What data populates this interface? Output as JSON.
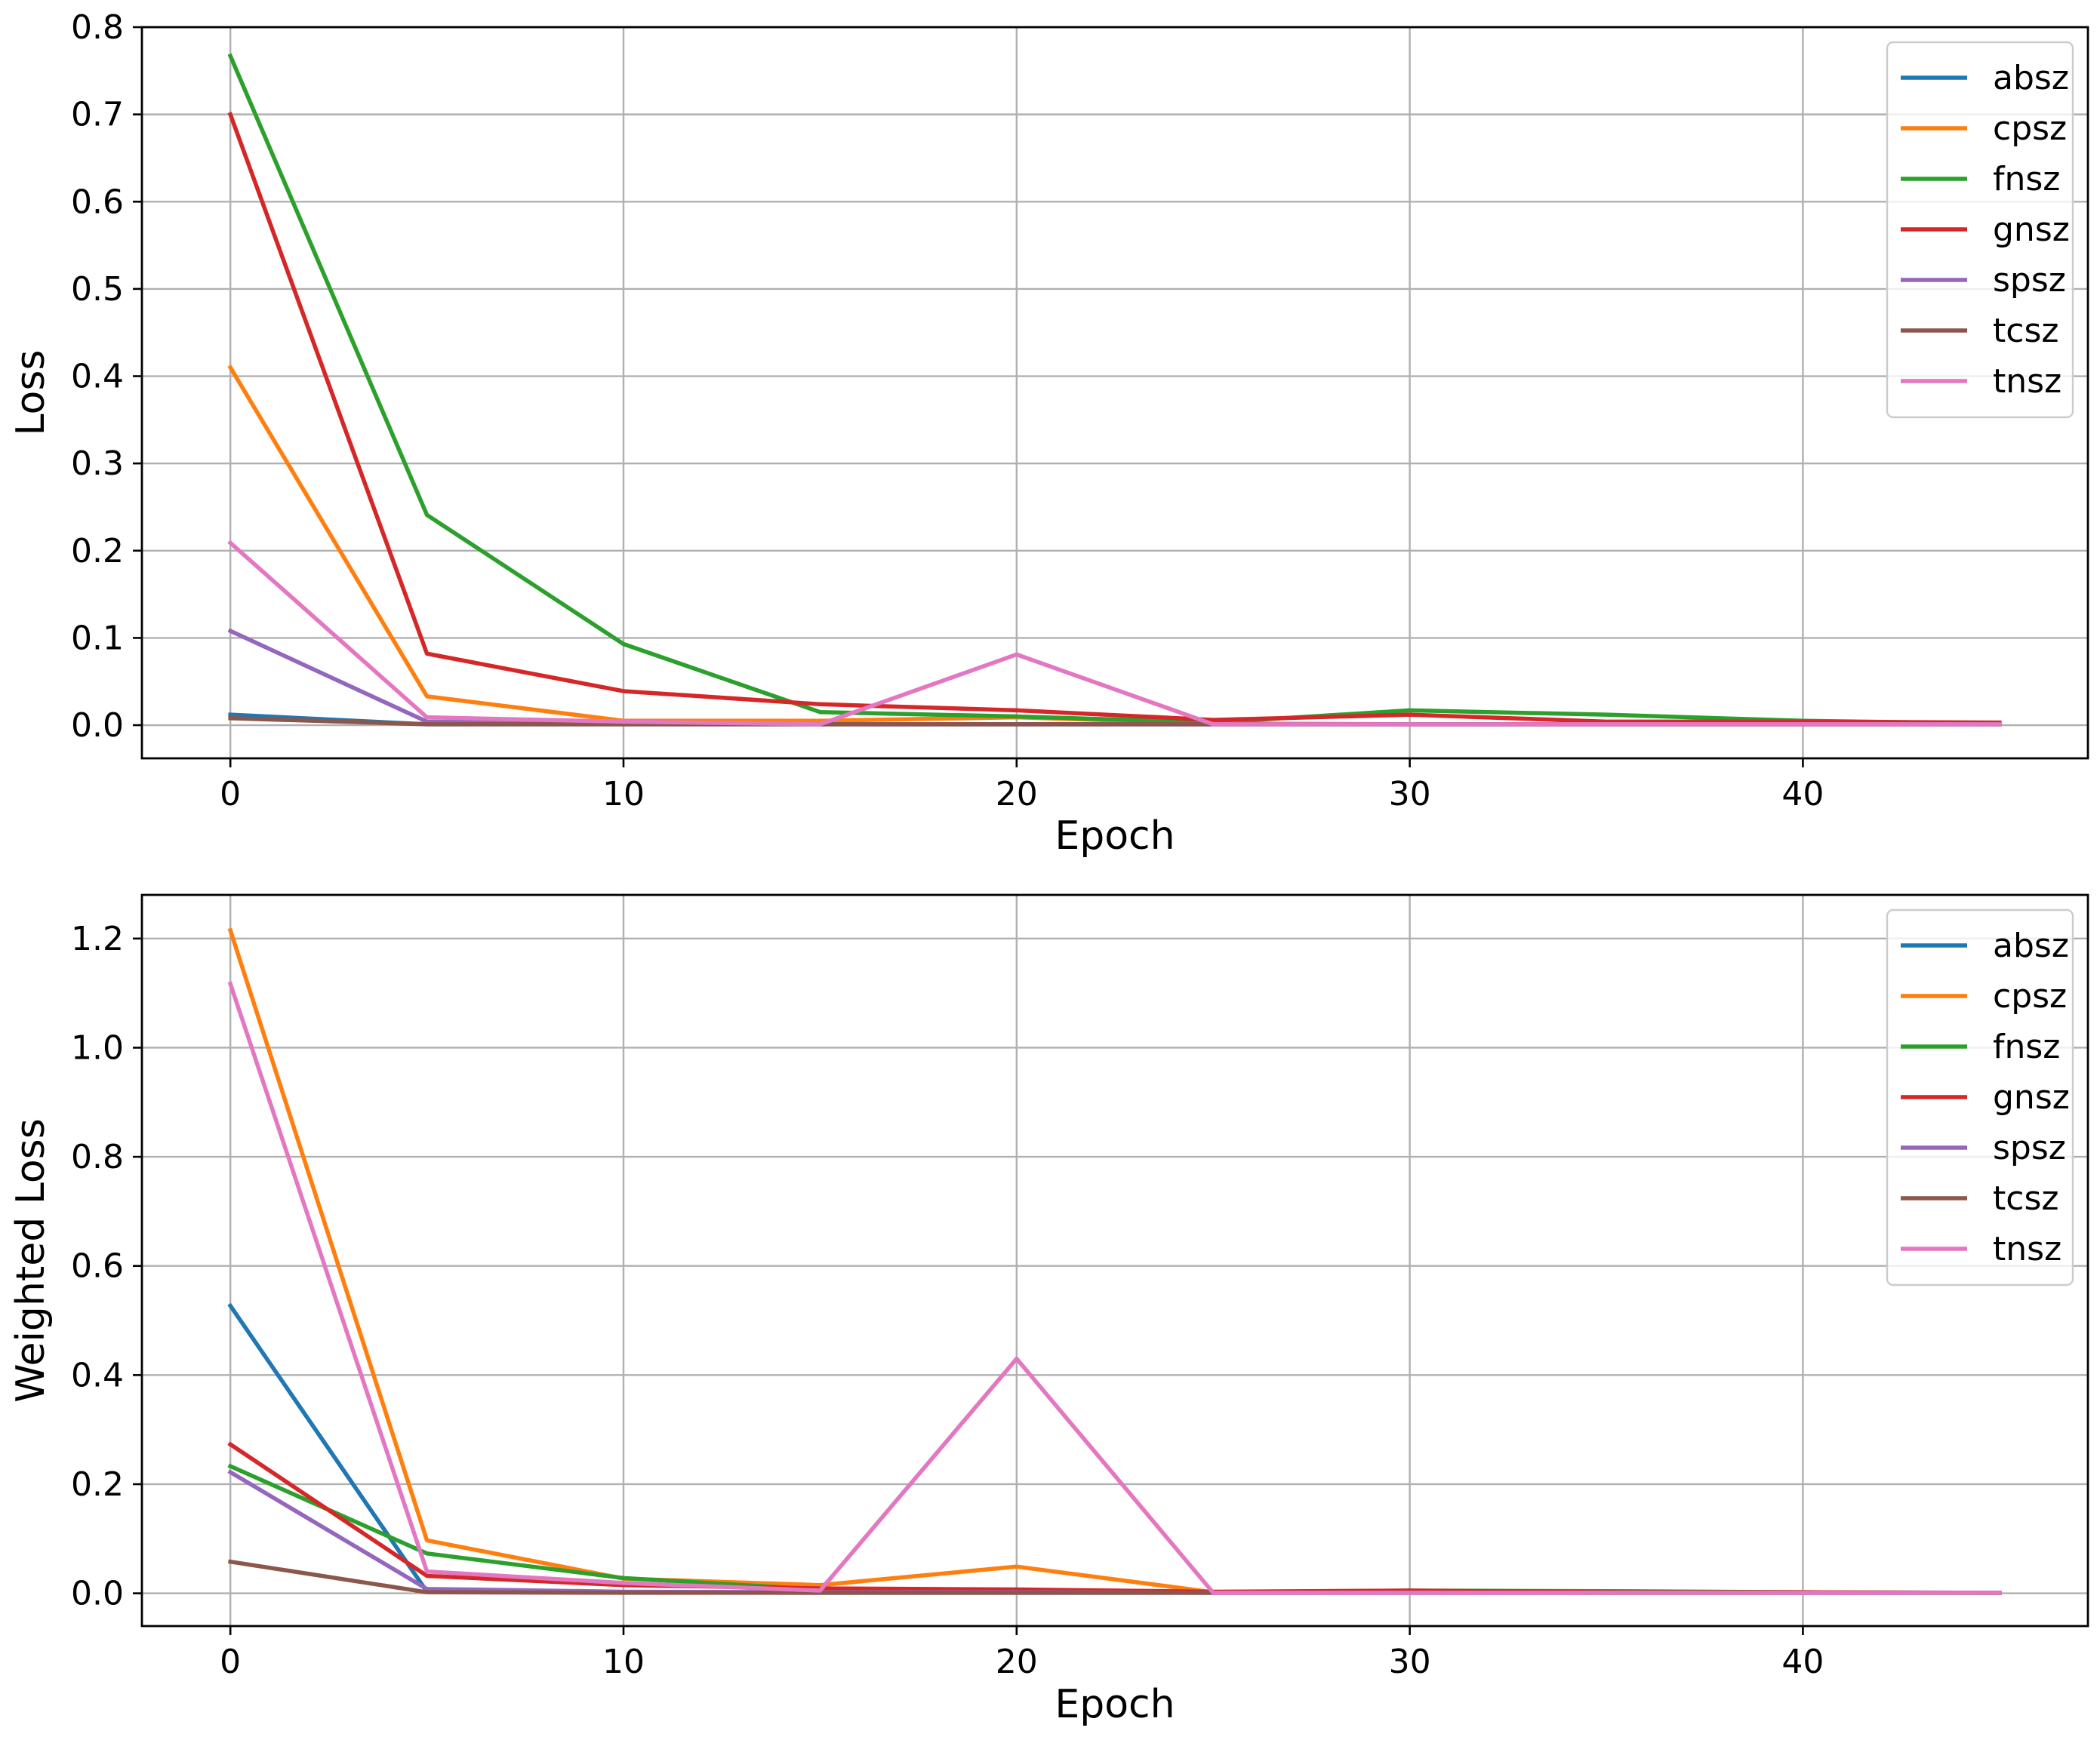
{
  "chart_data": [
    {
      "type": "line",
      "xlabel": "Epoch",
      "ylabel": "Loss",
      "xlim": [
        -2.25,
        47.25
      ],
      "ylim": [
        -0.038,
        0.8
      ],
      "xticks": [
        0,
        10,
        20,
        30,
        40
      ],
      "yticks": [
        0.0,
        0.1,
        0.2,
        0.3,
        0.4,
        0.5,
        0.6,
        0.7,
        0.8
      ],
      "ytick_labels": [
        "0.0",
        "0.1",
        "0.2",
        "0.3",
        "0.4",
        "0.5",
        "0.6",
        "0.7",
        "0.8"
      ],
      "grid": true,
      "legend_position": "upper right",
      "x": [
        0,
        5,
        10,
        15,
        20,
        25,
        30,
        35,
        40,
        45
      ],
      "series": [
        {
          "name": "absz",
          "color": "#1f77b4",
          "values": [
            0.012,
            0.001,
            0.001,
            0.001,
            0.001,
            0.001,
            0.001,
            0.001,
            0.001,
            0.001
          ]
        },
        {
          "name": "cpsz",
          "color": "#ff7f0e",
          "values": [
            0.41,
            0.033,
            0.005,
            0.005,
            0.009,
            0.002,
            0.001,
            0.001,
            0.001,
            0.001
          ]
        },
        {
          "name": "fnsz",
          "color": "#2ca02c",
          "values": [
            0.767,
            0.241,
            0.093,
            0.015,
            0.01,
            0.003,
            0.017,
            0.012,
            0.005,
            0.002
          ]
        },
        {
          "name": "gnsz",
          "color": "#d62728",
          "values": [
            0.7,
            0.082,
            0.039,
            0.024,
            0.017,
            0.006,
            0.012,
            0.004,
            0.004,
            0.003
          ]
        },
        {
          "name": "spsz",
          "color": "#9467bd",
          "values": [
            0.108,
            0.004,
            0.002,
            0.001,
            0.001,
            0.001,
            0.001,
            0.001,
            0.001,
            0.001
          ]
        },
        {
          "name": "tcsz",
          "color": "#8c564b",
          "values": [
            0.008,
            0.001,
            0.001,
            0.001,
            0.001,
            0.001,
            0.001,
            0.001,
            0.001,
            0.001
          ]
        },
        {
          "name": "tnsz",
          "color": "#e377c2",
          "values": [
            0.209,
            0.009,
            0.004,
            0.001,
            0.081,
            0.001,
            0.001,
            0.001,
            0.001,
            0.001
          ]
        }
      ]
    },
    {
      "type": "line",
      "xlabel": "Epoch",
      "ylabel": "Weighted Loss",
      "xlim": [
        -2.25,
        47.25
      ],
      "ylim": [
        -0.06,
        1.28
      ],
      "xticks": [
        0,
        10,
        20,
        30,
        40
      ],
      "yticks": [
        0.0,
        0.2,
        0.4,
        0.6,
        0.8,
        1.0,
        1.2
      ],
      "ytick_labels": [
        "0.0",
        "0.2",
        "0.4",
        "0.6",
        "0.8",
        "1.0",
        "1.2"
      ],
      "grid": true,
      "legend_position": "upper right",
      "x": [
        0,
        5,
        10,
        15,
        20,
        25,
        30,
        35,
        40,
        45
      ],
      "series": [
        {
          "name": "absz",
          "color": "#1f77b4",
          "values": [
            0.527,
            0.003,
            0.002,
            0.001,
            0.001,
            0.001,
            0.001,
            0.001,
            0.001,
            0.001
          ]
        },
        {
          "name": "cpsz",
          "color": "#ff7f0e",
          "values": [
            1.215,
            0.097,
            0.027,
            0.015,
            0.049,
            0.002,
            0.002,
            0.001,
            0.001,
            0.001
          ]
        },
        {
          "name": "fnsz",
          "color": "#2ca02c",
          "values": [
            0.233,
            0.073,
            0.028,
            0.007,
            0.004,
            0.002,
            0.005,
            0.004,
            0.002,
            0.001
          ]
        },
        {
          "name": "gnsz",
          "color": "#d62728",
          "values": [
            0.273,
            0.032,
            0.015,
            0.009,
            0.007,
            0.003,
            0.005,
            0.002,
            0.002,
            0.001
          ]
        },
        {
          "name": "spsz",
          "color": "#9467bd",
          "values": [
            0.222,
            0.008,
            0.003,
            0.002,
            0.002,
            0.001,
            0.001,
            0.001,
            0.001,
            0.001
          ]
        },
        {
          "name": "tcsz",
          "color": "#8c564b",
          "values": [
            0.058,
            0.002,
            0.001,
            0.001,
            0.001,
            0.001,
            0.001,
            0.001,
            0.001,
            0.001
          ]
        },
        {
          "name": "tnsz",
          "color": "#e377c2",
          "values": [
            1.117,
            0.04,
            0.019,
            0.005,
            0.43,
            0.001,
            0.001,
            0.001,
            0.001,
            0.001
          ]
        }
      ]
    }
  ]
}
